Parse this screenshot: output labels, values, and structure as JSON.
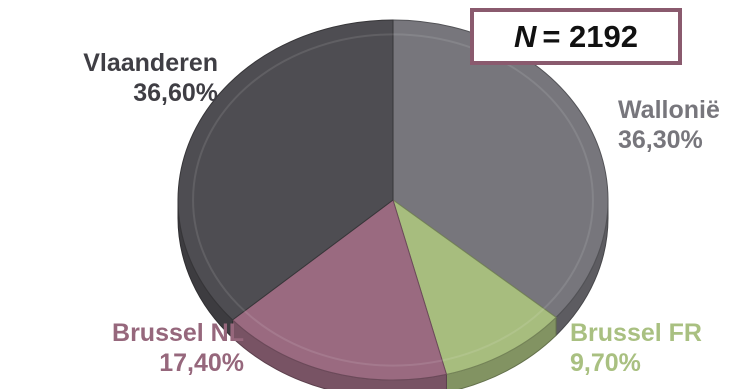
{
  "chart_data": {
    "type": "pie",
    "title": "",
    "sample_size": {
      "symbol": "N",
      "text": "= 2192",
      "value": 2192
    },
    "slices": [
      {
        "name": "Wallonië",
        "value": 36.3,
        "value_label": "36,30%",
        "color": "#77767c"
      },
      {
        "name": "Brussel FR",
        "value": 9.7,
        "value_label": "9,70%",
        "color": "#a7bd7e"
      },
      {
        "name": "Brussel NL",
        "value": 17.4,
        "value_label": "17,40%",
        "color": "#9a6a80"
      },
      {
        "name": "Vlaanderen",
        "value": 36.6,
        "value_label": "36,60%",
        "color": "#4e4d52"
      }
    ],
    "start": "12 o'clock",
    "direction": "clockwise",
    "style": "3d-tilted",
    "legend": "none (labels next to slices)"
  }
}
